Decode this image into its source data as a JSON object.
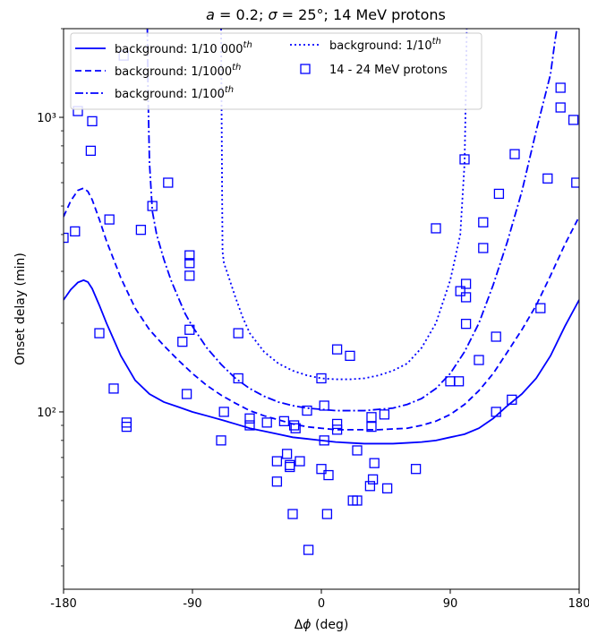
{
  "chart_data": {
    "type": "line",
    "title_main": "a = 0.2; σ = 25°; 14 MeV protons",
    "xlabel": "Δϕ (deg)",
    "ylabel": "Onset delay (min)",
    "xlim": [
      -180,
      180
    ],
    "ylim": [
      25,
      2000
    ],
    "yscale": "log",
    "x_ticks": [
      -180,
      -90,
      0,
      90,
      180
    ],
    "x_tick_labels": [
      "-180",
      "-90",
      "0",
      "90",
      "180"
    ],
    "y_tick_values": [
      100,
      1000
    ],
    "y_tick_labels": [
      "10²",
      "10³"
    ],
    "legend_position": "top-left",
    "series": [
      {
        "name": "background: 1/10 000th",
        "style": "solid",
        "color": "#0000ff",
        "x": [
          -180,
          -175,
          -170,
          -166,
          -163,
          -160,
          -155,
          -150,
          -140,
          -130,
          -120,
          -110,
          -100,
          -90,
          -80,
          -70,
          -60,
          -50,
          -40,
          -30,
          -20,
          -10,
          0,
          10,
          20,
          30,
          40,
          50,
          60,
          70,
          80,
          90,
          100,
          110,
          120,
          130,
          140,
          150,
          160,
          170,
          180
        ],
        "y": [
          240,
          260,
          275,
          280,
          276,
          262,
          230,
          200,
          155,
          128,
          115,
          108,
          104,
          100,
          97,
          94,
          91,
          88,
          86,
          84,
          82,
          81,
          80,
          79,
          78.5,
          78,
          78,
          78,
          78.5,
          79,
          80,
          82,
          84,
          88,
          95,
          105,
          115,
          130,
          155,
          195,
          240
        ]
      },
      {
        "name": "background: 1/1000th",
        "style": "dashed",
        "color": "#0000ff",
        "x": [
          -180,
          -175,
          -170,
          -166,
          -163,
          -160,
          -155,
          -150,
          -140,
          -130,
          -120,
          -110,
          -100,
          -90,
          -80,
          -70,
          -60,
          -50,
          -40,
          -30,
          -20,
          -10,
          0,
          10,
          20,
          30,
          40,
          50,
          60,
          70,
          80,
          90,
          100,
          110,
          120,
          130,
          140,
          150,
          160,
          170,
          180
        ],
        "y": [
          460,
          520,
          565,
          575,
          560,
          525,
          450,
          380,
          285,
          225,
          190,
          168,
          150,
          135,
          123,
          114,
          107,
          101,
          97,
          94,
          91,
          89,
          88,
          87,
          87,
          87,
          87,
          87.5,
          88,
          90,
          93,
          98,
          106,
          118,
          135,
          160,
          190,
          230,
          290,
          370,
          460
        ]
      },
      {
        "name": "background: 1/100th",
        "style": "dashdot",
        "color": "#0000ff",
        "x": [
          -121.5,
          -121,
          -120,
          -118,
          -115,
          -110,
          -105,
          -100,
          -95,
          -90,
          -80,
          -70,
          -60,
          -50,
          -40,
          -30,
          -20,
          -10,
          0,
          10,
          20,
          30,
          40,
          50,
          60,
          70,
          80,
          90,
          100,
          110,
          120,
          130,
          140,
          150,
          160,
          163,
          164.5
        ],
        "y": [
          2000,
          1200,
          700,
          480,
          400,
          330,
          280,
          245,
          215,
          195,
          165,
          145,
          130,
          120,
          113,
          108,
          105,
          103,
          102,
          101,
          101,
          101,
          102,
          103,
          106,
          111,
          120,
          135,
          160,
          200,
          270,
          380,
          560,
          900,
          1400,
          1800,
          2000
        ]
      },
      {
        "name": "background: 1/10th",
        "style": "dotted",
        "color": "#0000ff",
        "x": [
          -70,
          -69.5,
          -69,
          -68,
          -65,
          -60,
          -55,
          -50,
          -40,
          -30,
          -20,
          -10,
          0,
          10,
          20,
          30,
          40,
          50,
          60,
          70,
          80,
          90,
          97,
          100,
          101,
          101.5
        ],
        "y": [
          2000,
          800,
          350,
          320,
          290,
          245,
          210,
          185,
          160,
          146,
          138,
          133,
          130,
          129,
          129,
          130,
          133,
          138,
          146,
          165,
          200,
          280,
          400,
          700,
          1300,
          2000
        ]
      }
    ],
    "scatter": {
      "name": "14 - 24 MeV protons",
      "marker": "open-square",
      "color": "#0000ff",
      "points": [
        [
          -180,
          390
        ],
        [
          -172,
          410
        ],
        [
          -170,
          1050
        ],
        [
          -160,
          970
        ],
        [
          -161,
          770
        ],
        [
          -155,
          185
        ],
        [
          -148,
          450
        ],
        [
          -145,
          120
        ],
        [
          -138,
          1620
        ],
        [
          -136,
          92
        ],
        [
          -136,
          89
        ],
        [
          -126,
          415
        ],
        [
          -118,
          500
        ],
        [
          -107,
          600
        ],
        [
          -97,
          173
        ],
        [
          -94,
          115
        ],
        [
          -92,
          190
        ],
        [
          -92,
          290
        ],
        [
          -92,
          320
        ],
        [
          -92,
          340
        ],
        [
          -68,
          100
        ],
        [
          -70,
          80
        ],
        [
          -58,
          185
        ],
        [
          -58,
          130
        ],
        [
          -50,
          95
        ],
        [
          -50,
          90
        ],
        [
          -38,
          92
        ],
        [
          -31,
          58
        ],
        [
          -31,
          68
        ],
        [
          -26,
          93
        ],
        [
          -24,
          72
        ],
        [
          -22,
          65
        ],
        [
          -22,
          66
        ],
        [
          -19,
          90
        ],
        [
          -18,
          88
        ],
        [
          -20,
          45
        ],
        [
          -15,
          68
        ],
        [
          -10,
          101
        ],
        [
          -9,
          34
        ],
        [
          0,
          130
        ],
        [
          0,
          64
        ],
        [
          2,
          105
        ],
        [
          2,
          80
        ],
        [
          4,
          45
        ],
        [
          5,
          61
        ],
        [
          11,
          87
        ],
        [
          11,
          91
        ],
        [
          11,
          163
        ],
        [
          20,
          155
        ],
        [
          22,
          50
        ],
        [
          25,
          50
        ],
        [
          25,
          74
        ],
        [
          34,
          56
        ],
        [
          36,
          59
        ],
        [
          35,
          96
        ],
        [
          35,
          89
        ],
        [
          37,
          67
        ],
        [
          44,
          98
        ],
        [
          46,
          55
        ],
        [
          66,
          64
        ],
        [
          80,
          420
        ],
        [
          90,
          127
        ],
        [
          96,
          127
        ],
        [
          97,
          257
        ],
        [
          100,
          720
        ],
        [
          101,
          245
        ],
        [
          101,
          199
        ],
        [
          101,
          272
        ],
        [
          110,
          150
        ],
        [
          113,
          440
        ],
        [
          113,
          360
        ],
        [
          122,
          100
        ],
        [
          122,
          180
        ],
        [
          124,
          550
        ],
        [
          133,
          110
        ],
        [
          135,
          750
        ],
        [
          153,
          225
        ],
        [
          158,
          620
        ],
        [
          167,
          1080
        ],
        [
          167,
          1260
        ],
        [
          176,
          980
        ],
        [
          178,
          600
        ]
      ]
    }
  },
  "legend": {
    "entries": [
      {
        "text": "background: 1/10 000",
        "sup": "th"
      },
      {
        "text": "background: 1/1000",
        "sup": "th"
      },
      {
        "text": "background: 1/100",
        "sup": "th"
      },
      {
        "text": "background: 1/10",
        "sup": "th"
      },
      {
        "text": "14 - 24 MeV protons",
        "sup": ""
      }
    ]
  },
  "colors": {
    "series": "#0000ff",
    "axes": "#000000",
    "background": "#ffffff",
    "legend_border": "#cccccc"
  }
}
